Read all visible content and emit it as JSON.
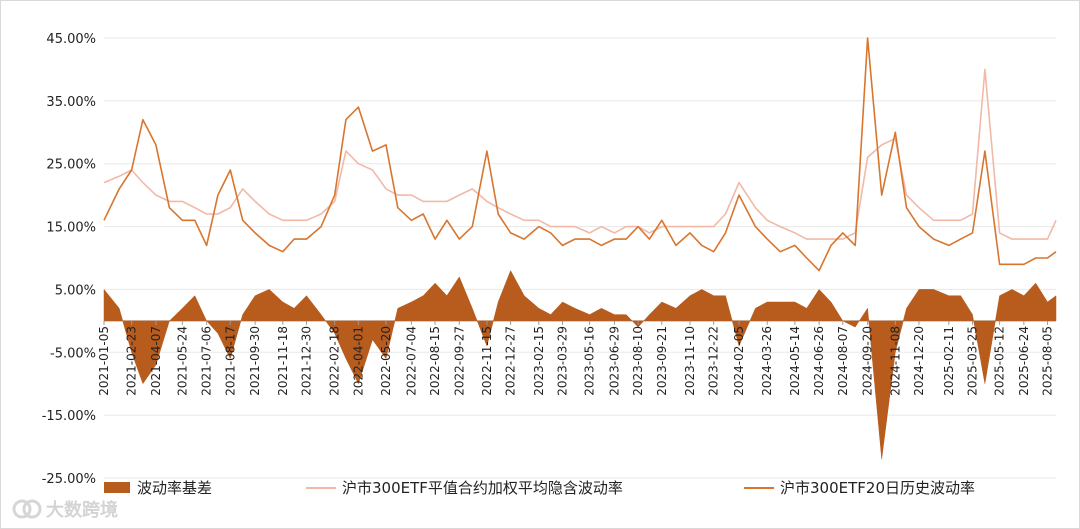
{
  "colors": {
    "basis": "#b85c1e",
    "iv": "#f2b9a7",
    "hv": "#d8762f",
    "grid": "#e8e8e8"
  },
  "watermark": {
    "text": "大数跨境",
    "icon": "ring-logo-icon"
  },
  "chart_data": {
    "type": "line",
    "title": "",
    "xlabel": "",
    "ylabel": "",
    "ylim": [
      -0.25,
      0.45
    ],
    "yticks": [
      "45.00%",
      "35.00%",
      "25.00%",
      "15.00%",
      "5.00%",
      "-5.00%",
      "-15.00%",
      "-25.00%"
    ],
    "ytick_values": [
      0.45,
      0.35,
      0.25,
      0.15,
      0.05,
      -0.05,
      -0.15,
      -0.25
    ],
    "xlim": [
      "2021-01-05",
      "2025-08-20"
    ],
    "x_ticks": [
      "2021-01-05",
      "2021-02-23",
      "2021-04-07",
      "2021-05-24",
      "2021-07-06",
      "2021-08-17",
      "2021-09-30",
      "2021-11-18",
      "2021-12-30",
      "2022-02-18",
      "2022-04-01",
      "2022-05-20",
      "2022-07-04",
      "2022-08-15",
      "2022-09-27",
      "2022-11-15",
      "2022-12-27",
      "2023-02-15",
      "2023-03-29",
      "2023-05-16",
      "2023-06-29",
      "2023-08-10",
      "2023-09-21",
      "2023-11-10",
      "2023-12-22",
      "2024-02-05",
      "2024-03-26",
      "2024-05-14",
      "2024-06-26",
      "2024-08-07",
      "2024-09-20",
      "2024-11-08",
      "2024-12-20",
      "2025-02-11",
      "2025-03-25",
      "2025-05-12",
      "2025-06-24",
      "2025-08-05"
    ],
    "legend_position": "bottom",
    "series": [
      {
        "name": "波动率基差",
        "kind": "area",
        "x": [
          "2021-01-05",
          "2021-02-01",
          "2021-02-23",
          "2021-03-15",
          "2021-04-07",
          "2021-05-01",
          "2021-05-24",
          "2021-06-15",
          "2021-07-06",
          "2021-07-26",
          "2021-08-17",
          "2021-09-08",
          "2021-09-30",
          "2021-10-25",
          "2021-11-18",
          "2021-12-08",
          "2021-12-30",
          "2022-01-25",
          "2022-02-18",
          "2022-03-10",
          "2022-04-01",
          "2022-04-26",
          "2022-05-20",
          "2022-06-10",
          "2022-07-04",
          "2022-07-25",
          "2022-08-15",
          "2022-09-05",
          "2022-09-27",
          "2022-10-20",
          "2022-11-15",
          "2022-12-05",
          "2022-12-27",
          "2023-01-20",
          "2023-02-15",
          "2023-03-08",
          "2023-03-29",
          "2023-04-20",
          "2023-05-16",
          "2023-06-06",
          "2023-06-29",
          "2023-07-20",
          "2023-08-10",
          "2023-08-30",
          "2023-09-21",
          "2023-10-16",
          "2023-11-10",
          "2023-12-01",
          "2023-12-22",
          "2024-01-12",
          "2024-02-05",
          "2024-03-05",
          "2024-03-26",
          "2024-04-18",
          "2024-05-14",
          "2024-06-04",
          "2024-06-26",
          "2024-07-17",
          "2024-08-07",
          "2024-08-29",
          "2024-09-20",
          "2024-10-15",
          "2024-11-08",
          "2024-11-28",
          "2024-12-20",
          "2025-01-15",
          "2025-02-11",
          "2025-03-04",
          "2025-03-25",
          "2025-04-16",
          "2025-05-12",
          "2025-06-03",
          "2025-06-24",
          "2025-07-15",
          "2025-08-05",
          "2025-08-20"
        ],
        "values": [
          0.05,
          0.02,
          -0.05,
          -0.1,
          -0.07,
          0.0,
          0.02,
          0.04,
          0.0,
          -0.02,
          -0.06,
          0.01,
          0.04,
          0.05,
          0.03,
          0.02,
          0.04,
          0.01,
          -0.02,
          -0.06,
          -0.1,
          -0.03,
          -0.06,
          0.02,
          0.03,
          0.04,
          0.06,
          0.04,
          0.07,
          0.02,
          -0.04,
          0.03,
          0.08,
          0.04,
          0.02,
          0.01,
          0.03,
          0.02,
          0.01,
          0.02,
          0.01,
          0.01,
          -0.01,
          0.01,
          0.03,
          0.02,
          0.04,
          0.05,
          0.04,
          0.04,
          -0.04,
          0.02,
          0.03,
          0.03,
          0.03,
          0.02,
          0.05,
          0.03,
          0.0,
          -0.01,
          0.02,
          -0.22,
          -0.05,
          0.02,
          0.05,
          0.05,
          0.04,
          0.04,
          0.01,
          -0.1,
          0.04,
          0.05,
          0.04,
          0.06,
          0.03,
          0.04
        ]
      },
      {
        "name": "沪市300ETF平值合约加权平均隐含波动率",
        "kind": "line",
        "x": [
          "2021-01-05",
          "2021-02-01",
          "2021-02-23",
          "2021-03-15",
          "2021-04-07",
          "2021-05-01",
          "2021-05-24",
          "2021-06-15",
          "2021-07-06",
          "2021-07-26",
          "2021-08-17",
          "2021-09-08",
          "2021-09-30",
          "2021-10-25",
          "2021-11-18",
          "2021-12-08",
          "2021-12-30",
          "2022-01-25",
          "2022-02-18",
          "2022-03-10",
          "2022-04-01",
          "2022-04-26",
          "2022-05-20",
          "2022-06-10",
          "2022-07-04",
          "2022-07-25",
          "2022-08-15",
          "2022-09-05",
          "2022-09-27",
          "2022-10-20",
          "2022-11-15",
          "2022-12-05",
          "2022-12-27",
          "2023-01-20",
          "2023-02-15",
          "2023-03-08",
          "2023-03-29",
          "2023-04-20",
          "2023-05-16",
          "2023-06-06",
          "2023-06-29",
          "2023-07-20",
          "2023-08-10",
          "2023-08-30",
          "2023-09-21",
          "2023-10-16",
          "2023-11-10",
          "2023-12-01",
          "2023-12-22",
          "2024-01-12",
          "2024-02-05",
          "2024-03-05",
          "2024-03-26",
          "2024-04-18",
          "2024-05-14",
          "2024-06-04",
          "2024-06-26",
          "2024-07-17",
          "2024-08-07",
          "2024-08-29",
          "2024-09-20",
          "2024-10-15",
          "2024-11-08",
          "2024-11-28",
          "2024-12-20",
          "2025-01-15",
          "2025-02-11",
          "2025-03-04",
          "2025-03-25",
          "2025-04-16",
          "2025-05-12",
          "2025-06-03",
          "2025-06-24",
          "2025-07-15",
          "2025-08-05",
          "2025-08-20"
        ],
        "values": [
          0.22,
          0.23,
          0.24,
          0.22,
          0.2,
          0.19,
          0.19,
          0.18,
          0.17,
          0.17,
          0.18,
          0.21,
          0.19,
          0.17,
          0.16,
          0.16,
          0.16,
          0.17,
          0.19,
          0.27,
          0.25,
          0.24,
          0.21,
          0.2,
          0.2,
          0.19,
          0.19,
          0.19,
          0.2,
          0.21,
          0.19,
          0.18,
          0.17,
          0.16,
          0.16,
          0.15,
          0.15,
          0.15,
          0.14,
          0.15,
          0.14,
          0.15,
          0.15,
          0.14,
          0.15,
          0.15,
          0.15,
          0.15,
          0.15,
          0.17,
          0.22,
          0.18,
          0.16,
          0.15,
          0.14,
          0.13,
          0.13,
          0.13,
          0.13,
          0.14,
          0.26,
          0.28,
          0.29,
          0.2,
          0.18,
          0.16,
          0.16,
          0.16,
          0.17,
          0.4,
          0.14,
          0.13,
          0.13,
          0.13,
          0.13,
          0.16
        ]
      },
      {
        "name": "沪市300ETF20日历史波动率",
        "kind": "line",
        "x": [
          "2021-01-05",
          "2021-02-01",
          "2021-02-23",
          "2021-03-15",
          "2021-04-07",
          "2021-05-01",
          "2021-05-24",
          "2021-06-15",
          "2021-07-06",
          "2021-07-26",
          "2021-08-17",
          "2021-09-08",
          "2021-09-30",
          "2021-10-25",
          "2021-11-18",
          "2021-12-08",
          "2021-12-30",
          "2022-01-25",
          "2022-02-18",
          "2022-03-10",
          "2022-04-01",
          "2022-04-26",
          "2022-05-20",
          "2022-06-10",
          "2022-07-04",
          "2022-07-25",
          "2022-08-15",
          "2022-09-05",
          "2022-09-27",
          "2022-10-20",
          "2022-11-15",
          "2022-12-05",
          "2022-12-27",
          "2023-01-20",
          "2023-02-15",
          "2023-03-08",
          "2023-03-29",
          "2023-04-20",
          "2023-05-16",
          "2023-06-06",
          "2023-06-29",
          "2023-07-20",
          "2023-08-10",
          "2023-08-30",
          "2023-09-21",
          "2023-10-16",
          "2023-11-10",
          "2023-12-01",
          "2023-12-22",
          "2024-01-12",
          "2024-02-05",
          "2024-03-05",
          "2024-03-26",
          "2024-04-18",
          "2024-05-14",
          "2024-06-04",
          "2024-06-26",
          "2024-07-17",
          "2024-08-07",
          "2024-08-29",
          "2024-09-20",
          "2024-10-15",
          "2024-11-08",
          "2024-11-28",
          "2024-12-20",
          "2025-01-15",
          "2025-02-11",
          "2025-03-04",
          "2025-03-25",
          "2025-04-16",
          "2025-05-12",
          "2025-06-03",
          "2025-06-24",
          "2025-07-15",
          "2025-08-05",
          "2025-08-20"
        ],
        "values": [
          0.16,
          0.21,
          0.24,
          0.32,
          0.28,
          0.18,
          0.16,
          0.16,
          0.12,
          0.2,
          0.24,
          0.16,
          0.14,
          0.12,
          0.11,
          0.13,
          0.13,
          0.15,
          0.2,
          0.32,
          0.34,
          0.27,
          0.28,
          0.18,
          0.16,
          0.17,
          0.13,
          0.16,
          0.13,
          0.15,
          0.27,
          0.17,
          0.14,
          0.13,
          0.15,
          0.14,
          0.12,
          0.13,
          0.13,
          0.12,
          0.13,
          0.13,
          0.15,
          0.13,
          0.16,
          0.12,
          0.14,
          0.12,
          0.11,
          0.14,
          0.2,
          0.15,
          0.13,
          0.11,
          0.12,
          0.1,
          0.08,
          0.12,
          0.14,
          0.12,
          0.45,
          0.2,
          0.3,
          0.18,
          0.15,
          0.13,
          0.12,
          0.13,
          0.14,
          0.27,
          0.09,
          0.09,
          0.09,
          0.1,
          0.1,
          0.11
        ]
      }
    ]
  }
}
